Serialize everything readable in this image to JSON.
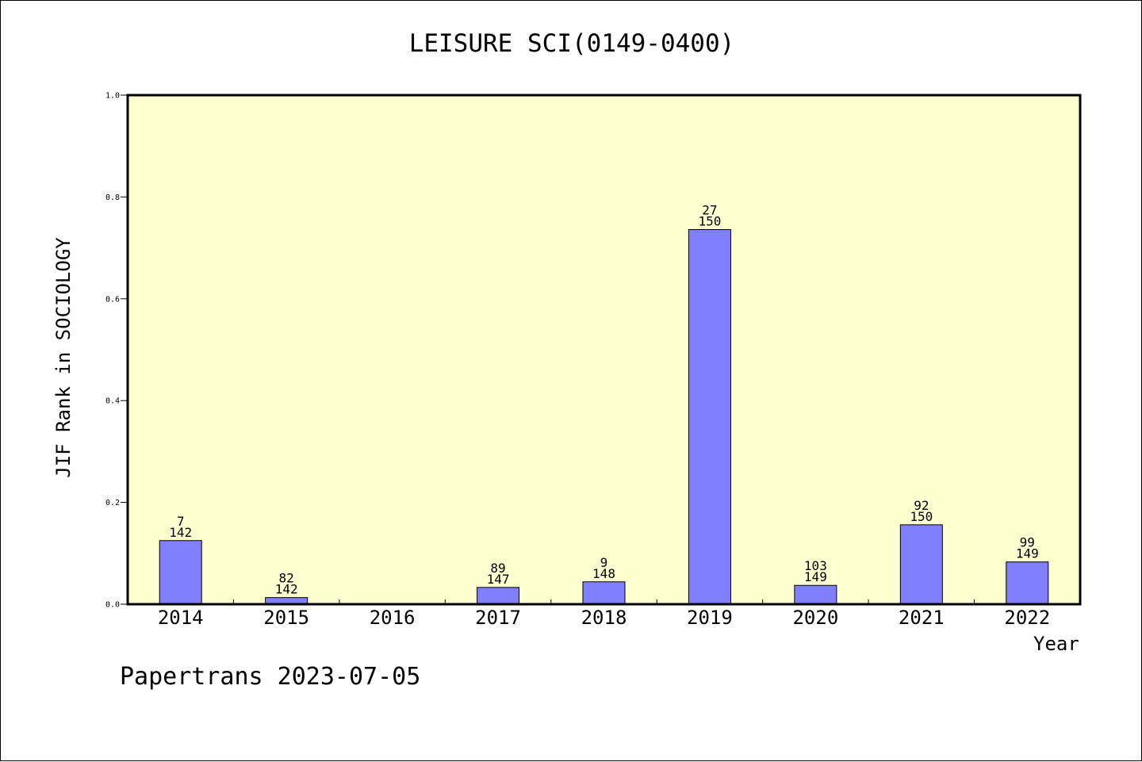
{
  "chart_data": {
    "type": "bar",
    "title": "LEISURE SCI(0149-0400)",
    "xlabel": "Year",
    "ylabel": "JIF Rank in SOCIOLOGY",
    "categories": [
      "2014",
      "2015",
      "2016",
      "2017",
      "2018",
      "2019",
      "2020",
      "2021",
      "2022"
    ],
    "ranks": [
      7,
      82,
      null,
      89,
      9,
      27,
      103,
      92,
      99
    ],
    "totals": [
      142,
      142,
      null,
      147,
      148,
      150,
      149,
      150,
      149
    ],
    "values": [
      0.125,
      0.013,
      null,
      0.033,
      0.044,
      0.736,
      0.037,
      0.156,
      0.083
    ],
    "ylim": [
      0,
      1.0
    ],
    "yticks": [
      "0.0",
      "0.2",
      "0.4",
      "0.6",
      "0.8",
      "1.0"
    ],
    "grid": false,
    "legend": "none",
    "colors": {
      "plot_bg": "#ffffd0",
      "bar_fill": "#8080ff",
      "bar_stroke": "#000000"
    }
  },
  "footer": "Papertrans 2023-07-05"
}
